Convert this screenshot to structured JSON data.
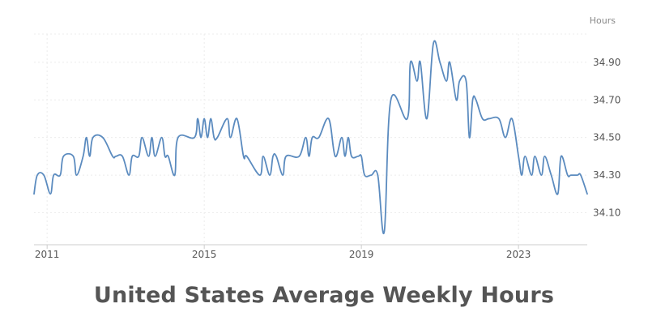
{
  "colors": {
    "line": "#5b8bbf",
    "grid": "#ececec",
    "text": "#555555"
  },
  "chart_data": {
    "type": "line",
    "title": "United States Average Weekly Hours",
    "unit_label": "Hours",
    "x_range": [
      "2010-09",
      "2024-10"
    ],
    "xticks": [
      "2011",
      "2015",
      "2019",
      "2023"
    ],
    "ylim": [
      33.93,
      35.05
    ],
    "yticks": [
      "34.10",
      "34.30",
      "34.50",
      "34.70",
      "34.90"
    ],
    "grid": true,
    "series": [
      {
        "x": [
          "2010-09",
          "2010-10",
          "2010-12",
          "2011-02",
          "2011-03",
          "2011-05",
          "2011-06",
          "2011-09",
          "2011-10",
          "2011-12",
          "2012-01",
          "2012-02",
          "2012-03",
          "2012-06",
          "2012-09",
          "2012-10",
          "2012-12",
          "2013-02",
          "2013-03",
          "2013-05",
          "2013-06",
          "2013-08",
          "2013-09",
          "2013-10",
          "2013-12",
          "2014-01",
          "2014-02",
          "2014-04",
          "2014-05",
          "2014-10",
          "2014-11",
          "2014-12",
          "2015-01",
          "2015-02",
          "2015-03",
          "2015-04",
          "2015-05",
          "2015-08",
          "2015-09",
          "2015-11",
          "2016-01",
          "2016-02",
          "2016-06",
          "2016-07",
          "2016-09",
          "2016-10",
          "2016-11",
          "2017-01",
          "2017-02",
          "2017-06",
          "2017-08",
          "2017-09",
          "2017-10",
          "2017-12",
          "2018-03",
          "2018-05",
          "2018-07",
          "2018-08",
          "2018-09",
          "2018-10",
          "2018-12",
          "2019-01",
          "2019-02",
          "2019-04",
          "2019-06",
          "2019-08",
          "2019-10",
          "2020-03",
          "2020-04",
          "2020-06",
          "2020-07",
          "2020-09",
          "2020-11",
          "2021-01",
          "2021-03",
          "2021-04",
          "2021-06",
          "2021-07",
          "2021-09",
          "2021-10",
          "2021-11",
          "2021-12",
          "2022-02",
          "2022-04",
          "2022-07",
          "2022-09",
          "2022-11",
          "2023-01",
          "2023-02",
          "2023-03",
          "2023-05",
          "2023-06",
          "2023-08",
          "2023-09",
          "2023-11",
          "2024-01",
          "2024-02",
          "2024-04",
          "2024-05",
          "2024-07",
          "2024-08",
          "2024-10"
        ],
        "values": [
          34.2,
          34.3,
          34.3,
          34.2,
          34.3,
          34.3,
          34.4,
          34.4,
          34.3,
          34.4,
          34.5,
          34.4,
          34.5,
          34.5,
          34.4,
          34.4,
          34.4,
          34.3,
          34.4,
          34.4,
          34.5,
          34.4,
          34.5,
          34.4,
          34.5,
          34.4,
          34.4,
          34.3,
          34.5,
          34.5,
          34.6,
          34.5,
          34.6,
          34.5,
          34.6,
          34.5,
          34.5,
          34.6,
          34.5,
          34.6,
          34.4,
          34.4,
          34.3,
          34.4,
          34.3,
          34.4,
          34.4,
          34.3,
          34.4,
          34.4,
          34.5,
          34.4,
          34.5,
          34.5,
          34.6,
          34.4,
          34.5,
          34.4,
          34.5,
          34.4,
          34.4,
          34.4,
          34.3,
          34.3,
          34.3,
          34.0,
          34.7,
          34.6,
          34.9,
          34.8,
          34.9,
          34.6,
          35.0,
          34.9,
          34.8,
          34.9,
          34.7,
          34.8,
          34.8,
          34.5,
          34.7,
          34.7,
          34.6,
          34.6,
          34.6,
          34.5,
          34.6,
          34.4,
          34.3,
          34.4,
          34.3,
          34.4,
          34.3,
          34.4,
          34.3,
          34.2,
          34.4,
          34.3,
          34.3,
          34.3,
          34.3,
          34.2
        ]
      }
    ]
  }
}
